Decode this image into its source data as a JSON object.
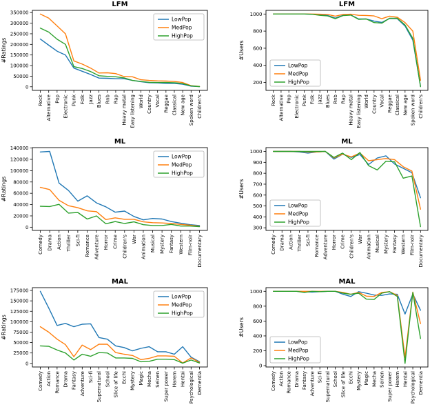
{
  "figure": {
    "series_colors": {
      "LowPop": "#1f77b4",
      "MedPop": "#ff7f0e",
      "HighPop": "#2ca02c"
    },
    "legend_labels": [
      "LowPop",
      "MedPop",
      "HighPop"
    ],
    "text_color": "#000000",
    "axis_color": "#000000"
  },
  "chart_data": [
    {
      "id": "lfm-ratings",
      "row": 0,
      "col": 0,
      "type": "line",
      "title": "LFM",
      "ylabel": "#Ratings",
      "legend": "upper-right",
      "yticks": [
        0,
        50000,
        100000,
        150000,
        200000,
        250000,
        300000,
        350000
      ],
      "ylim": [
        -17000,
        360500
      ],
      "categories": [
        "Rock",
        "Alternative",
        "Pop",
        "Electronic",
        "Punk",
        "Folk",
        "Jazz",
        "Blues",
        "Rnb",
        "Rap",
        "Heavy metal",
        "Easy listening",
        "World",
        "Country",
        "Vocal",
        "Reggae",
        "Classical",
        "New age",
        "Spoken word",
        "Children's"
      ],
      "series": [
        {
          "name": "LowPop",
          "values": [
            225000,
            196000,
            168000,
            150000,
            88000,
            73000,
            58000,
            41000,
            40000,
            38000,
            38000,
            30000,
            24000,
            19000,
            18000,
            16000,
            16000,
            12000,
            3000,
            800
          ]
        },
        {
          "name": "MedPop",
          "values": [
            343000,
            324000,
            287000,
            250000,
            122000,
            107000,
            88000,
            65000,
            66000,
            62000,
            48000,
            47000,
            33000,
            30000,
            28000,
            27000,
            25000,
            20000,
            5000,
            1500
          ]
        },
        {
          "name": "HighPop",
          "values": [
            277000,
            258000,
            224000,
            200000,
            95000,
            86000,
            72000,
            52000,
            49000,
            47000,
            42000,
            30000,
            25000,
            21000,
            20000,
            20000,
            19000,
            15000,
            4000,
            1000
          ]
        }
      ]
    },
    {
      "id": "lfm-users",
      "row": 0,
      "col": 1,
      "type": "line",
      "title": "LFM",
      "ylabel": "#Users",
      "legend": "lower-left",
      "yticks": [
        200,
        400,
        600,
        800,
        1000
      ],
      "ylim": [
        107,
        1043
      ],
      "categories": [
        "Rock",
        "Alternative",
        "Pop",
        "Electronic",
        "Punk",
        "Folk",
        "Jazz",
        "Blues",
        "Rnb",
        "Rap",
        "Heavy metal",
        "Easy listening",
        "World",
        "Country",
        "Vocal",
        "Reggae",
        "Classical",
        "New age",
        "Spoken word",
        "Children's"
      ],
      "series": [
        {
          "name": "LowPop",
          "values": [
            1000,
            1000,
            1000,
            1000,
            1000,
            997,
            990,
            983,
            952,
            985,
            990,
            942,
            942,
            917,
            902,
            948,
            945,
            860,
            695,
            155
          ]
        },
        {
          "name": "MedPop",
          "values": [
            1000,
            1000,
            1000,
            1000,
            1000,
            1000,
            998,
            995,
            975,
            995,
            998,
            985,
            983,
            978,
            945,
            975,
            962,
            900,
            800,
            225
          ]
        },
        {
          "name": "HighPop",
          "values": [
            1000,
            1000,
            1000,
            1000,
            1000,
            997,
            985,
            978,
            945,
            982,
            987,
            938,
            942,
            900,
            893,
            950,
            950,
            872,
            715,
            150
          ]
        }
      ]
    },
    {
      "id": "ml-ratings",
      "row": 1,
      "col": 0,
      "type": "line",
      "title": "ML",
      "ylabel": "#Ratings",
      "legend": "upper-right",
      "yticks": [
        0,
        20000,
        40000,
        60000,
        80000,
        100000,
        120000,
        140000
      ],
      "ylim": [
        -5650,
        140700
      ],
      "categories": [
        "Comedy",
        "Drama",
        "Action",
        "Thriller",
        "Sci-fi",
        "Romance",
        "Adventure",
        "Horror",
        "Crime",
        "Children's",
        "War",
        "Animation",
        "Musical",
        "Mystery",
        "Fantasy",
        "Western",
        "Film-noir",
        "Documentary"
      ],
      "series": [
        {
          "name": "LowPop",
          "values": [
            133000,
            134000,
            78000,
            65000,
            46000,
            55500,
            43000,
            36000,
            26500,
            28500,
            19000,
            13000,
            15500,
            14500,
            10000,
            7000,
            4500,
            3000
          ]
        },
        {
          "name": "MedPop",
          "values": [
            70500,
            66500,
            47500,
            38000,
            34500,
            29000,
            27500,
            13500,
            16500,
            14000,
            14000,
            9500,
            8000,
            7500,
            6500,
            5000,
            3500,
            1500
          ]
        },
        {
          "name": "HighPop",
          "values": [
            37000,
            36500,
            40500,
            25000,
            26000,
            14500,
            20000,
            6000,
            10000,
            6500,
            9500,
            4500,
            3000,
            3000,
            5000,
            2000,
            2000,
            1000
          ]
        }
      ]
    },
    {
      "id": "ml-users",
      "row": 1,
      "col": 1,
      "type": "line",
      "title": "ML",
      "ylabel": "#Users",
      "legend": "lower-left",
      "yticks": [
        300,
        400,
        500,
        600,
        700,
        800,
        900,
        1000
      ],
      "ylim": [
        276,
        1035
      ],
      "categories": [
        "Comedy",
        "Drama",
        "Action",
        "Thriller",
        "Sci-fi",
        "Romance",
        "Adventure",
        "Horror",
        "Crime",
        "Children's",
        "War",
        "Animation",
        "Musical",
        "Mystery",
        "Fantasy",
        "Western",
        "Film-noir",
        "Documentary"
      ],
      "series": [
        {
          "name": "LowPop",
          "values": [
            1000,
            1000,
            1000,
            995,
            985,
            995,
            1000,
            930,
            975,
            945,
            972,
            880,
            940,
            960,
            885,
            845,
            805,
            575
          ]
        },
        {
          "name": "MedPop",
          "values": [
            1000,
            1000,
            1000,
            1000,
            995,
            995,
            1000,
            940,
            975,
            950,
            985,
            915,
            925,
            935,
            925,
            860,
            820,
            470
          ]
        },
        {
          "name": "HighPop",
          "values": [
            1000,
            1000,
            1000,
            1000,
            1000,
            1000,
            1000,
            945,
            985,
            925,
            990,
            870,
            830,
            910,
            905,
            755,
            775,
            310
          ]
        }
      ]
    },
    {
      "id": "mal-ratings",
      "row": 2,
      "col": 0,
      "type": "line",
      "title": "MAL",
      "ylabel": "#Ratings",
      "legend": "upper-right",
      "yticks": [
        0,
        25000,
        50000,
        75000,
        100000,
        125000,
        150000,
        175000
      ],
      "ylim": [
        -8650,
        181700
      ],
      "categories": [
        "Comedy",
        "Action",
        "Romance",
        "Drama",
        "Fantasy",
        "Adventure",
        "Sci-fi",
        "Supernatural",
        "School",
        "Slice of life",
        "Ecchi",
        "Mystery",
        "Magic",
        "Mecha",
        "Seinen",
        "Super power",
        "Harem",
        "Hentai",
        "Psychological",
        "Dementia"
      ],
      "series": [
        {
          "name": "LowPop",
          "values": [
            173000,
            133000,
            91000,
            96000,
            88000,
            94000,
            95000,
            62000,
            58000,
            42000,
            38000,
            30000,
            36000,
            40000,
            28000,
            28000,
            22000,
            40000,
            15000,
            4000
          ]
        },
        {
          "name": "MedPop",
          "values": [
            88000,
            75000,
            58000,
            45000,
            16000,
            44000,
            33000,
            46000,
            46000,
            26000,
            22000,
            19000,
            9000,
            12000,
            18000,
            18000,
            17000,
            1000,
            13000,
            2500
          ]
        },
        {
          "name": "HighPop",
          "values": [
            42000,
            41000,
            32000,
            25000,
            8000,
            22000,
            17000,
            26000,
            25000,
            13000,
            13000,
            12000,
            4000,
            5000,
            10000,
            10000,
            9000,
            500,
            8000,
            1000
          ]
        }
      ]
    },
    {
      "id": "mal-users",
      "row": 2,
      "col": 1,
      "type": "line",
      "title": "MAL",
      "ylabel": "#Users",
      "legend": "lower-left",
      "yticks": [
        0,
        200,
        400,
        600,
        800,
        1000
      ],
      "ylim": [
        -18,
        1049
      ],
      "categories": [
        "Comedy",
        "Action",
        "Romance",
        "Drama",
        "Fantasy",
        "Adventure",
        "Sci-fi",
        "Supernatural",
        "School",
        "Slice of life",
        "Ecchi",
        "Mystery",
        "Magic",
        "Mecha",
        "Seinen",
        "Super power",
        "Harem",
        "Hentai",
        "Psychological",
        "Dementia"
      ],
      "series": [
        {
          "name": "LowPop",
          "values": [
            1000,
            1000,
            1000,
            1000,
            995,
            990,
            995,
            1000,
            1000,
            960,
            930,
            995,
            975,
            950,
            945,
            965,
            960,
            695,
            965,
            745
          ]
        },
        {
          "name": "MedPop",
          "values": [
            1000,
            1000,
            1000,
            1000,
            1000,
            1000,
            1000,
            1000,
            1000,
            985,
            960,
            985,
            935,
            930,
            985,
            995,
            945,
            110,
            990,
            565
          ]
        },
        {
          "name": "HighPop",
          "values": [
            1000,
            1000,
            1000,
            1000,
            985,
            1000,
            995,
            1000,
            1000,
            975,
            960,
            975,
            895,
            890,
            975,
            995,
            930,
            30,
            985,
            365
          ]
        }
      ]
    }
  ]
}
